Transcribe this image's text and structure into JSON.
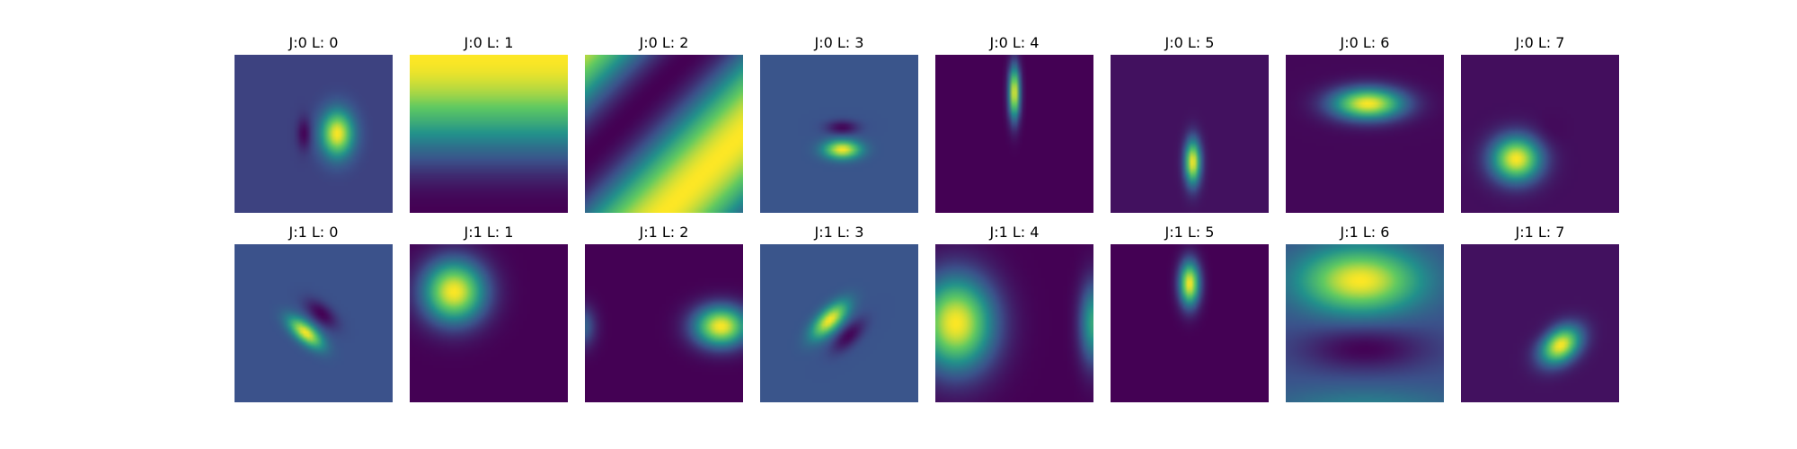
{
  "chart_data": {
    "type": "heatmap",
    "colormap": "viridis",
    "colormap_stops": [
      "#440154",
      "#3b528b",
      "#21918c",
      "#5ec962",
      "#fde725"
    ],
    "axes_visible": false,
    "grid": false,
    "layout": {
      "rows": 2,
      "cols": 8
    },
    "panels": [
      {
        "title": "J:0 L: 0",
        "background": 0.2,
        "blobs": [
          {
            "cx": 0.65,
            "cy": 0.5,
            "sx": 0.07,
            "sy": 0.1,
            "rot": 0,
            "amp": 0.8
          },
          {
            "cx": 0.44,
            "cy": 0.5,
            "sx": 0.03,
            "sy": 0.07,
            "rot": 0,
            "amp": -0.2
          }
        ]
      },
      {
        "title": "J:0 L: 1",
        "background": 0.0,
        "bands": {
          "frequency": 0.5,
          "angle": 0,
          "phase": 0.0,
          "contrast": 1.0
        },
        "blobs": []
      },
      {
        "title": "J:0 L: 2",
        "background": 0.0,
        "bands": {
          "frequency": 0.85,
          "angle": 45,
          "phase": 0.1,
          "contrast": 1.0
        },
        "blobs": []
      },
      {
        "title": "J:0 L: 3",
        "background": 0.26,
        "blobs": [
          {
            "cx": 0.52,
            "cy": 0.6,
            "sx": 0.08,
            "sy": 0.04,
            "rot": 0,
            "amp": 0.74
          },
          {
            "cx": 0.52,
            "cy": 0.46,
            "sx": 0.07,
            "sy": 0.03,
            "rot": 0,
            "amp": -0.25
          }
        ]
      },
      {
        "title": "J:0 L: 4",
        "background": 0.0,
        "blobs": [
          {
            "cx": 0.5,
            "cy": 0.24,
            "sx": 0.025,
            "sy": 0.12,
            "rot": 0,
            "amp": 1.0
          }
        ]
      },
      {
        "title": "J:0 L: 5",
        "background": 0.05,
        "blobs": [
          {
            "cx": 0.52,
            "cy": 0.68,
            "sx": 0.035,
            "sy": 0.1,
            "rot": 0,
            "amp": 0.95
          }
        ]
      },
      {
        "title": "J:0 L: 6",
        "background": 0.02,
        "blobs": [
          {
            "cx": 0.52,
            "cy": 0.31,
            "sx": 0.16,
            "sy": 0.07,
            "rot": 0,
            "amp": 0.98
          }
        ]
      },
      {
        "title": "J:0 L: 7",
        "background": 0.04,
        "blobs": [
          {
            "cx": 0.35,
            "cy": 0.66,
            "sx": 0.11,
            "sy": 0.1,
            "rot": 0,
            "amp": 0.96
          },
          {
            "cx": 0.55,
            "cy": 0.5,
            "sx": 0.07,
            "sy": 0.07,
            "rot": 0,
            "amp": -0.03
          }
        ]
      },
      {
        "title": "J:1 L: 0",
        "background": 0.25,
        "blobs": [
          {
            "cx": 0.45,
            "cy": 0.56,
            "sx": 0.09,
            "sy": 0.04,
            "rot": 40,
            "amp": 0.75
          },
          {
            "cx": 0.55,
            "cy": 0.44,
            "sx": 0.08,
            "sy": 0.04,
            "rot": 40,
            "amp": -0.25
          }
        ]
      },
      {
        "title": "J:1 L: 1",
        "background": 0.0,
        "blobs": [
          {
            "cx": 0.28,
            "cy": 0.3,
            "sx": 0.14,
            "sy": 0.14,
            "rot": 0,
            "amp": 1.0
          }
        ]
      },
      {
        "title": "J:1 L: 2",
        "background": 0.0,
        "blobs": [
          {
            "cx": 0.86,
            "cy": 0.52,
            "sx": 0.12,
            "sy": 0.09,
            "rot": 0,
            "amp": 1.0
          },
          {
            "cx": -0.02,
            "cy": 0.52,
            "sx": 0.06,
            "sy": 0.09,
            "rot": 0,
            "amp": 0.35
          }
        ]
      },
      {
        "title": "J:1 L: 3",
        "background": 0.26,
        "blobs": [
          {
            "cx": 0.44,
            "cy": 0.48,
            "sx": 0.1,
            "sy": 0.045,
            "rot": -45,
            "amp": 0.74
          },
          {
            "cx": 0.56,
            "cy": 0.58,
            "sx": 0.09,
            "sy": 0.04,
            "rot": -45,
            "amp": -0.25
          }
        ]
      },
      {
        "title": "J:1 L: 4",
        "background": 0.0,
        "blobs": [
          {
            "cx": 0.13,
            "cy": 0.5,
            "sx": 0.17,
            "sy": 0.21,
            "rot": 0,
            "amp": 1.0
          },
          {
            "cx": 1.0,
            "cy": 0.5,
            "sx": 0.06,
            "sy": 0.18,
            "rot": 0,
            "amp": 0.6
          }
        ]
      },
      {
        "title": "J:1 L: 5",
        "background": 0.0,
        "blobs": [
          {
            "cx": 0.5,
            "cy": 0.25,
            "sx": 0.045,
            "sy": 0.1,
            "rot": 0,
            "amp": 1.0
          }
        ]
      },
      {
        "title": "J:1 L: 6",
        "background": 0.25,
        "blobs": [
          {
            "cx": 0.47,
            "cy": 0.23,
            "sx": 0.26,
            "sy": 0.14,
            "rot": 0,
            "amp": 0.75
          },
          {
            "cx": 0.5,
            "cy": 0.66,
            "sx": 0.28,
            "sy": 0.1,
            "rot": 0,
            "amp": -0.25
          },
          {
            "cx": 0.5,
            "cy": 1.05,
            "sx": 0.4,
            "sy": 0.1,
            "rot": 0,
            "amp": 0.2
          }
        ]
      },
      {
        "title": "J:1 L: 7",
        "background": 0.05,
        "blobs": [
          {
            "cx": 0.63,
            "cy": 0.64,
            "sx": 0.1,
            "sy": 0.07,
            "rot": -40,
            "amp": 0.95
          },
          {
            "cx": 0.52,
            "cy": 0.56,
            "sx": 0.06,
            "sy": 0.04,
            "rot": -40,
            "amp": -0.03
          }
        ]
      }
    ]
  }
}
